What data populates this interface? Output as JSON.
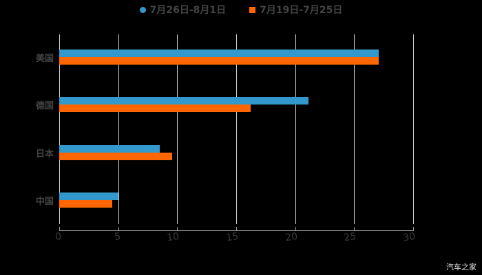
{
  "chart_data": {
    "type": "bar",
    "orientation": "horizontal",
    "title": "",
    "xlabel": "",
    "ylabel": "",
    "categories": [
      "美国",
      "德国",
      "日本",
      "中国"
    ],
    "series": [
      {
        "name": "7月26日-8月1日",
        "color": "#3399cc",
        "values": [
          27.1,
          21.1,
          8.5,
          5.0
        ]
      },
      {
        "name": "7月19日-7月25日",
        "color": "#ff6600",
        "values": [
          27.1,
          16.2,
          9.6,
          4.5
        ]
      }
    ],
    "xlim": [
      0,
      30
    ],
    "xticks": [
      "0",
      "5",
      "10",
      "15",
      "20",
      "25",
      "30"
    ],
    "grid": true,
    "legend_position": "top"
  },
  "legend": {
    "items": [
      {
        "label": "7月26日-8月1日",
        "color": "#3399cc"
      },
      {
        "label": "7月19日-7月25日",
        "color": "#ff6600"
      }
    ]
  },
  "watermark": "汽车之家"
}
